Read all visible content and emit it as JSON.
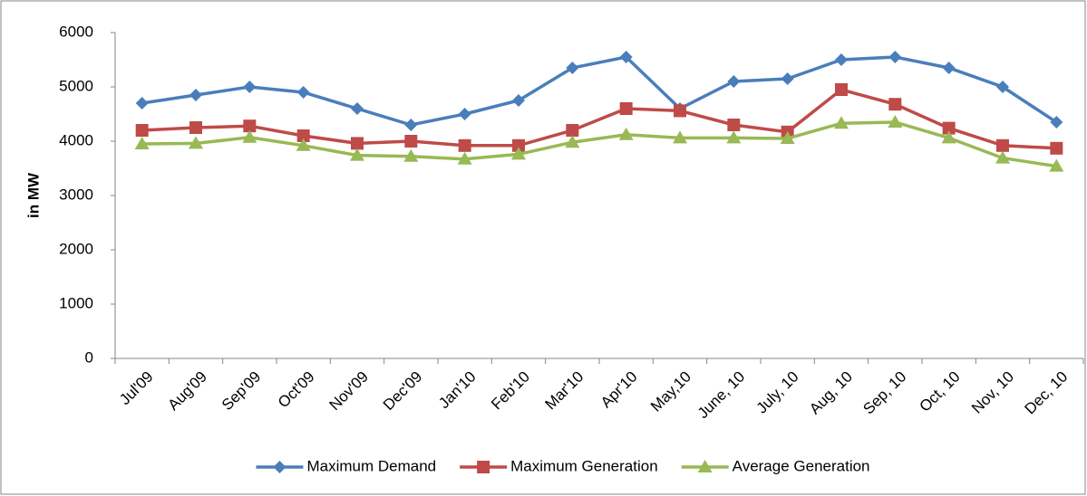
{
  "chart_data": {
    "type": "line",
    "y_label": "in MW",
    "categories": [
      "Jul'09",
      "Aug'09",
      "Sep'09",
      "Oct'09",
      "Nov'09",
      "Dec'09",
      "Jan'10",
      "Feb'10",
      "Mar'10",
      "Apr'10",
      "May,10",
      "June, 10",
      "July, 10",
      "Aug, 10",
      "Sep, 10",
      "Oct, 10",
      "Nov, 10",
      "Dec, 10"
    ],
    "series": [
      {
        "name": "Maximum Demand",
        "color": "#4a7ebb",
        "marker": "diamond",
        "values": [
          4700,
          4850,
          5000,
          4900,
          4600,
          4300,
          4500,
          4750,
          5350,
          5550,
          4600,
          5100,
          5150,
          5500,
          5550,
          5350,
          5000,
          4350
        ]
      },
      {
        "name": "Maximum Generation",
        "color": "#be4b48",
        "marker": "square",
        "values": [
          4200,
          4250,
          4280,
          4100,
          3960,
          4000,
          3920,
          3920,
          4200,
          4600,
          4560,
          4300,
          4170,
          4950,
          4680,
          4240,
          3920,
          3870
        ]
      },
      {
        "name": "Average Generation",
        "color": "#98b954",
        "marker": "triangle",
        "values": [
          3950,
          3960,
          4070,
          3920,
          3740,
          3720,
          3670,
          3760,
          3980,
          4120,
          4060,
          4060,
          4050,
          4330,
          4350,
          4060,
          3690,
          3540
        ]
      }
    ],
    "ylim": [
      0,
      6000
    ],
    "yticks": [
      0,
      1000,
      2000,
      3000,
      4000,
      5000,
      6000
    ],
    "grid": false,
    "legend": "bottom"
  }
}
